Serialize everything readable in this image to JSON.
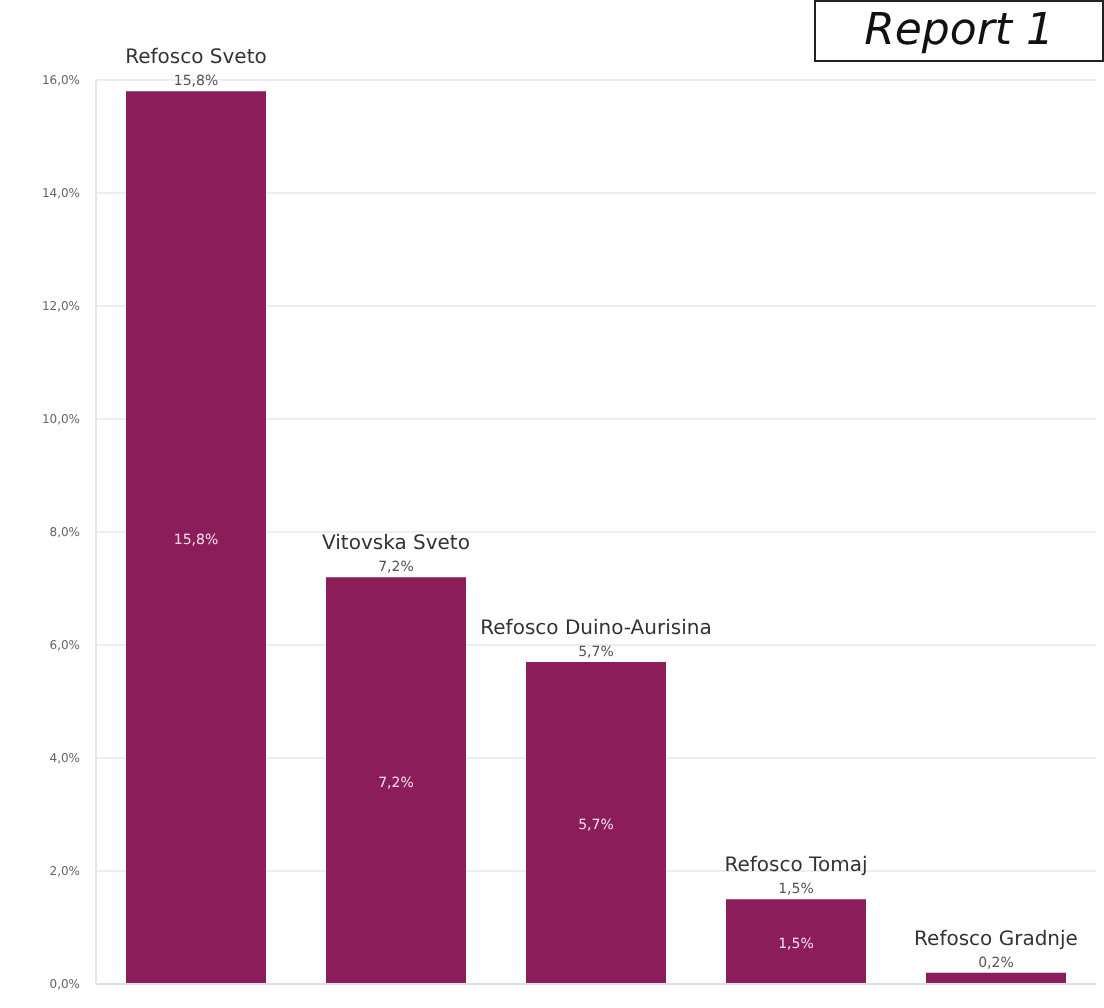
{
  "chart_data": {
    "type": "bar",
    "categories": [
      "Refosco Sveto",
      "Vitovska Sveto",
      "Refosco Duino-Aurisina",
      "Refosco Tomaj",
      "Refosco Gradnje"
    ],
    "values": [
      15.8,
      7.2,
      5.7,
      1.5,
      0.2
    ],
    "value_labels": [
      "15,8%",
      "7,2%",
      "5,7%",
      "1,5%",
      "0,2%"
    ],
    "color": "#8b1e5a",
    "ylim": [
      0,
      16
    ],
    "yticks": [
      {
        "value": 0,
        "label": "0,0%"
      },
      {
        "value": 2,
        "label": "2,0%"
      },
      {
        "value": 4,
        "label": "4,0%"
      },
      {
        "value": 6,
        "label": "6,0%"
      },
      {
        "value": 8,
        "label": "8,0%"
      },
      {
        "value": 10,
        "label": "10,0%"
      },
      {
        "value": 12,
        "label": "12,0%"
      },
      {
        "value": 14,
        "label": "14,0%"
      },
      {
        "value": 16,
        "label": "16,0%"
      }
    ],
    "grid": "y",
    "tick_labels": "y",
    "annotations": [
      "Report 1"
    ]
  }
}
